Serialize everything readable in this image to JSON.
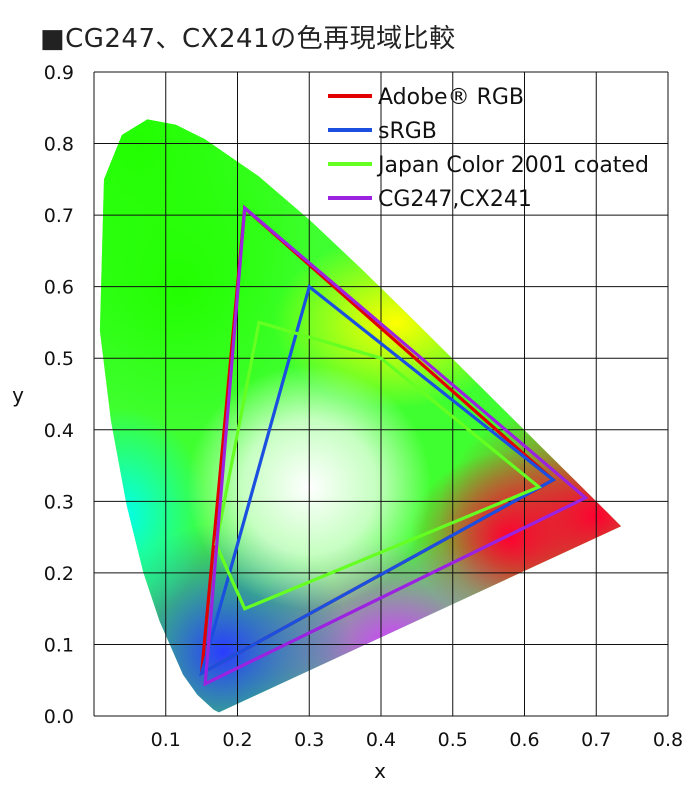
{
  "chart_data": {
    "type": "line",
    "title": "■CG247、CX241の色再現域比較",
    "xlabel": "x",
    "ylabel": "y",
    "xlim": [
      0.0,
      0.8
    ],
    "ylim": [
      0.0,
      0.9
    ],
    "x_ticks": [
      "0.1",
      "0.2",
      "0.3",
      "0.4",
      "0.5",
      "0.6",
      "0.7",
      "0.8"
    ],
    "y_ticks": [
      "0.0",
      "0.1",
      "0.2",
      "0.3",
      "0.4",
      "0.5",
      "0.6",
      "0.7",
      "0.8",
      "0.9"
    ],
    "grid": true,
    "legend_position": "top-right",
    "series": [
      {
        "name": "Adobe® RGB",
        "color": "#e00000",
        "points": [
          [
            0.64,
            0.33
          ],
          [
            0.21,
            0.71
          ],
          [
            0.15,
            0.06
          ]
        ]
      },
      {
        "name": "sRGB",
        "color": "#1a4fe0",
        "points": [
          [
            0.64,
            0.33
          ],
          [
            0.3,
            0.6
          ],
          [
            0.15,
            0.06
          ]
        ]
      },
      {
        "name": "Japan Color 2001 coated",
        "color": "#66ff22",
        "points": [
          [
            0.62,
            0.32
          ],
          [
            0.4,
            0.5
          ],
          [
            0.23,
            0.55
          ],
          [
            0.17,
            0.24
          ],
          [
            0.21,
            0.15
          ]
        ]
      },
      {
        "name": "CG247,CX241",
        "color": "#9b22e0",
        "points": [
          [
            0.685,
            0.305
          ],
          [
            0.21,
            0.71
          ],
          [
            0.155,
            0.045
          ]
        ]
      }
    ],
    "spectral_locus": [
      [
        0.1741,
        0.005
      ],
      [
        0.1666,
        0.0089
      ],
      [
        0.144,
        0.0297
      ],
      [
        0.1241,
        0.0578
      ],
      [
        0.0913,
        0.1327
      ],
      [
        0.0687,
        0.2007
      ],
      [
        0.0454,
        0.295
      ],
      [
        0.0235,
        0.4127
      ],
      [
        0.0082,
        0.5384
      ],
      [
        0.0139,
        0.7502
      ],
      [
        0.0389,
        0.812
      ],
      [
        0.0743,
        0.8338
      ],
      [
        0.1142,
        0.8262
      ],
      [
        0.1547,
        0.8059
      ],
      [
        0.2296,
        0.7543
      ],
      [
        0.3016,
        0.6923
      ],
      [
        0.3731,
        0.6245
      ],
      [
        0.4441,
        0.5547
      ],
      [
        0.5125,
        0.4866
      ],
      [
        0.5752,
        0.4242
      ],
      [
        0.627,
        0.3725
      ],
      [
        0.6658,
        0.334
      ],
      [
        0.6915,
        0.3083
      ],
      [
        0.7147,
        0.2853
      ],
      [
        0.7347,
        0.2653
      ]
    ]
  }
}
